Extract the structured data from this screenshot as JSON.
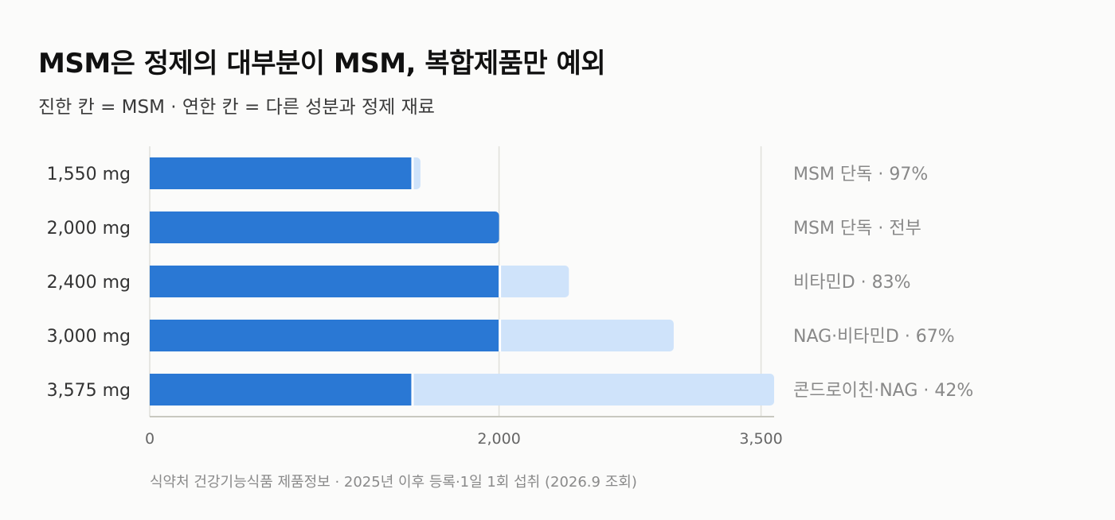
{
  "title": "MSM은 정제의 대부분이 MSM, 복합제품만 예외",
  "subtitle": "진한 칸 = MSM · 연한 칸 = 다른 성분과 정제 재료",
  "source": "식약처 건강기능식품 제품정보 · 2025년 이후 등록·1일 1회 섭취 (2026.9 조회)",
  "colors": {
    "msm": "#2a78d4",
    "other": "#cfe3fa",
    "axis": "#c8c8c0",
    "grid": "#e0e0da",
    "tick_text": "#666666",
    "category_text": "#333333",
    "annotation_text": "#888888"
  },
  "chart_data": {
    "type": "bar",
    "orientation": "horizontal",
    "stacked": true,
    "categories": [
      "1,550 mg",
      "2,000 mg",
      "2,400 mg",
      "3,000 mg",
      "3,575 mg"
    ],
    "series": [
      {
        "key": "msm",
        "values": [
          1500,
          2000,
          2000,
          2000,
          1500
        ]
      },
      {
        "key": "other",
        "values": [
          50,
          0,
          400,
          1000,
          2075
        ]
      }
    ],
    "annotations": [
      "MSM 단독 · 97%",
      "MSM 단독 · 전부",
      "비타민D · 83%",
      "NAG·비타민D · 67%",
      "콘드로이친·NAG · 42%"
    ],
    "xlim": [
      0,
      3575
    ],
    "xticks": [
      0,
      2000,
      3500
    ],
    "xtick_labels": [
      "0",
      "2,000",
      "3,500"
    ],
    "grid": "vertical",
    "legend": "none"
  }
}
